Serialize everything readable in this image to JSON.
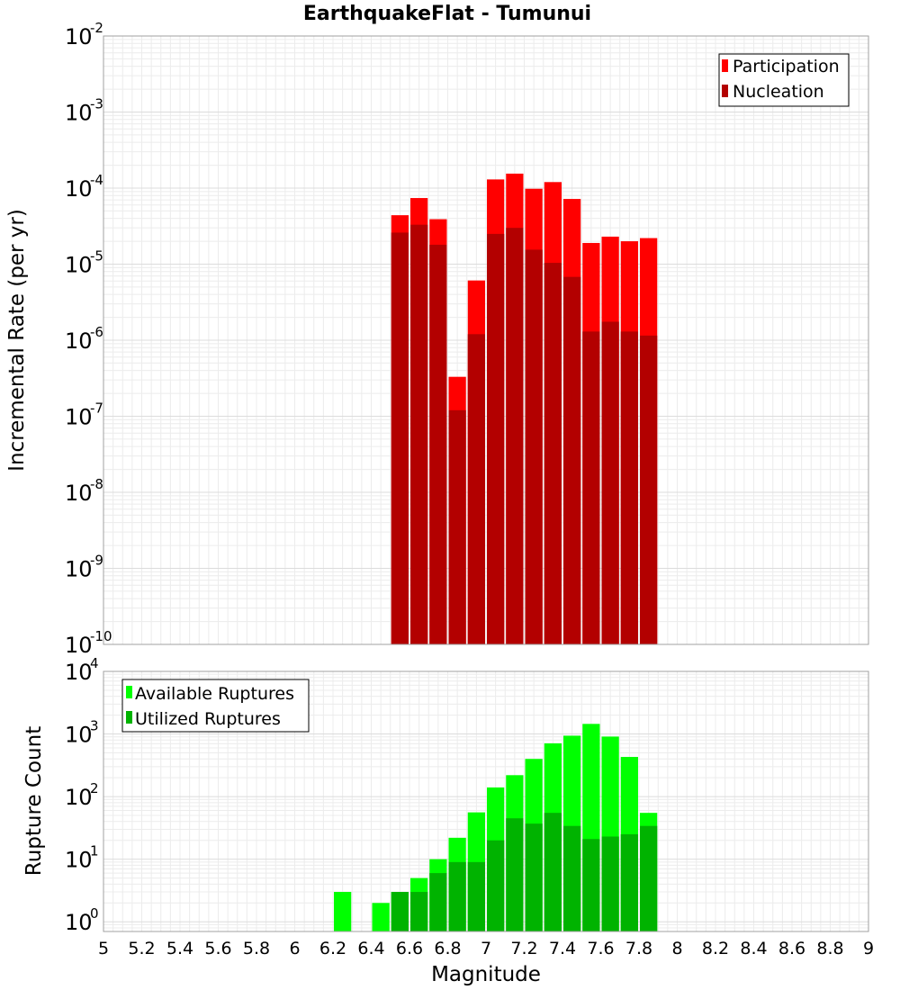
{
  "chart_data": [
    {
      "type": "bar",
      "title": "EarthquakeFlat - Tumunui",
      "xlabel": "",
      "ylabel": "Incremental Rate (per yr)",
      "yscale": "log",
      "xlim": [
        5,
        9
      ],
      "ylim": [
        1e-10,
        0.01
      ],
      "y_tick_exponents": [
        -10,
        -9,
        -8,
        -7,
        -6,
        -5,
        -4,
        -3,
        -2
      ],
      "grid": true,
      "legend_position": "top-right",
      "bin_width": 0.1,
      "x": [
        6.55,
        6.65,
        6.75,
        6.85,
        6.95,
        7.05,
        7.15,
        7.25,
        7.35,
        7.45,
        7.55,
        7.65,
        7.75,
        7.85
      ],
      "series": [
        {
          "name": "Participation",
          "color": "#ff0000",
          "values": [
            4.4e-05,
            7.4e-05,
            3.9e-05,
            3.3e-07,
            6.1e-06,
            0.00013,
            0.000155,
            9.8e-05,
            0.00012,
            7.2e-05,
            1.9e-05,
            2.3e-05,
            2e-05,
            2.2e-05
          ]
        },
        {
          "name": "Nucleation",
          "color": "#b30000",
          "values": [
            2.6e-05,
            3.3e-05,
            1.8e-05,
            1.2e-07,
            1.2e-06,
            2.5e-05,
            3e-05,
            1.55e-05,
            1.04e-05,
            6.8e-06,
            1.3e-06,
            1.75e-06,
            1.3e-06,
            1.15e-06
          ]
        }
      ]
    },
    {
      "type": "bar",
      "title": "",
      "xlabel": "Magnitude",
      "ylabel": "Rupture Count",
      "yscale": "log",
      "xlim": [
        5,
        9
      ],
      "ylim": [
        0.7,
        10000
      ],
      "y_tick_exponents": [
        0,
        1,
        2,
        3,
        4
      ],
      "x_ticks": [
        "5",
        "5.2",
        "5.4",
        "5.6",
        "5.8",
        "6",
        "6.2",
        "6.4",
        "6.6",
        "6.8",
        "7",
        "7.2",
        "7.4",
        "7.6",
        "7.8",
        "8",
        "8.2",
        "8.4",
        "8.6",
        "8.8",
        "9"
      ],
      "grid": true,
      "legend_position": "top-left",
      "bin_width": 0.1,
      "x": [
        6.25,
        6.45,
        6.55,
        6.65,
        6.75,
        6.85,
        6.95,
        7.05,
        7.15,
        7.25,
        7.35,
        7.45,
        7.55,
        7.65,
        7.75,
        7.85
      ],
      "series": [
        {
          "name": "Available Ruptures",
          "color": "#00ff00",
          "values": [
            3,
            2,
            3,
            5,
            10,
            22,
            56,
            140,
            220,
            400,
            710,
            940,
            1450,
            910,
            430,
            55
          ]
        },
        {
          "name": "Utilized Ruptures",
          "color": "#00b300",
          "values": [
            null,
            null,
            3,
            3,
            6,
            9,
            9,
            20,
            45,
            37,
            55,
            34,
            21,
            23,
            25,
            34
          ]
        }
      ]
    }
  ]
}
